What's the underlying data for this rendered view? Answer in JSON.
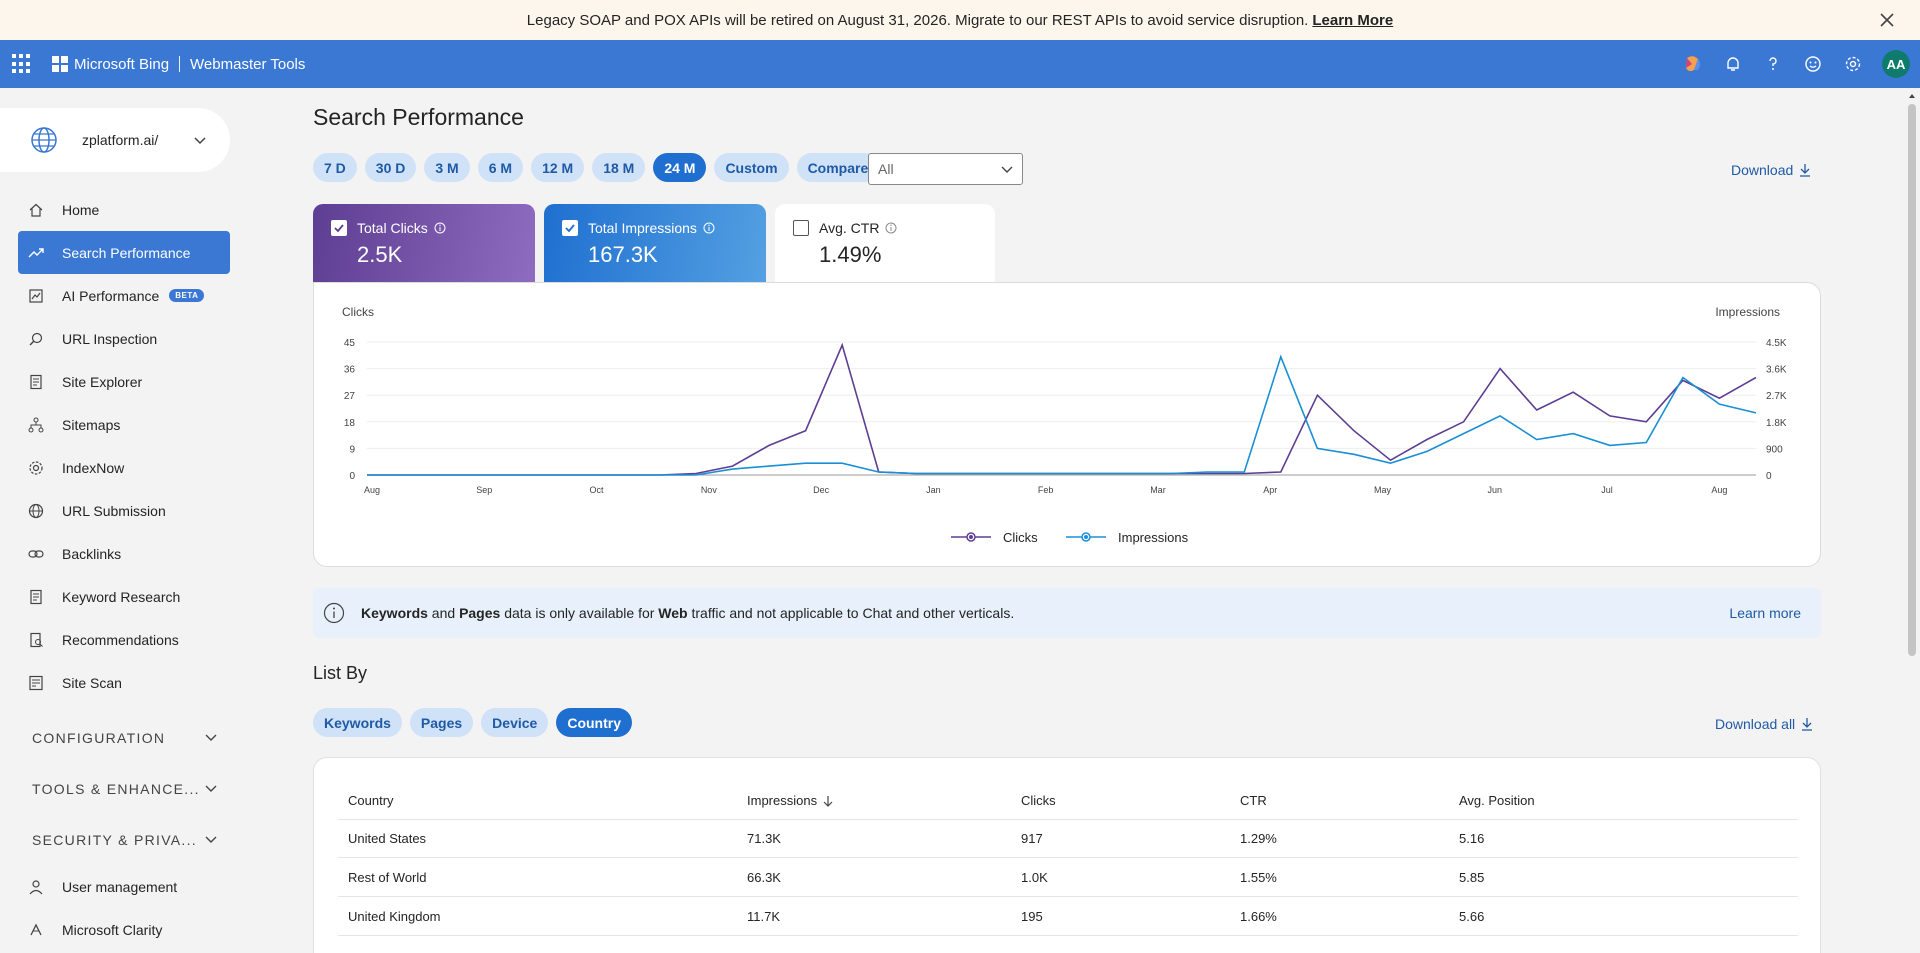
{
  "banner": {
    "message": "Legacy SOAP and POX APIs will be retired on August 31, 2026. Migrate to our REST APIs to avoid service disruption.",
    "link": "Learn More"
  },
  "topbar": {
    "brand": "Microsoft Bing",
    "product": "Webmaster Tools",
    "avatar": "AA"
  },
  "site": {
    "name": "zplatform.ai/"
  },
  "nav": {
    "items": [
      {
        "label": "Home",
        "icon": "home-icon"
      },
      {
        "label": "Search Performance",
        "icon": "trending-icon"
      },
      {
        "label": "AI Performance",
        "icon": "ai-chart-icon",
        "badge": "BETA"
      },
      {
        "label": "URL Inspection",
        "icon": "search-icon"
      },
      {
        "label": "Site Explorer",
        "icon": "document-icon"
      },
      {
        "label": "Sitemaps",
        "icon": "sitemap-icon"
      },
      {
        "label": "IndexNow",
        "icon": "gear-icon"
      },
      {
        "label": "URL Submission",
        "icon": "globe-icon"
      },
      {
        "label": "Backlinks",
        "icon": "link-icon"
      },
      {
        "label": "Keyword Research",
        "icon": "document-icon"
      },
      {
        "label": "Recommendations",
        "icon": "document-search-icon"
      },
      {
        "label": "Site Scan",
        "icon": "scan-icon"
      }
    ],
    "sections": [
      "CONFIGURATION",
      "TOOLS & ENHANCE...",
      "SECURITY & PRIVA..."
    ],
    "bottom": [
      {
        "label": "User management",
        "icon": "user-icon"
      },
      {
        "label": "Microsoft Clarity",
        "icon": "clarity-icon"
      }
    ]
  },
  "page": {
    "title": "Search Performance",
    "ranges": [
      "7 D",
      "30 D",
      "3 M",
      "6 M",
      "12 M",
      "18 M",
      "24 M",
      "Custom",
      "Compare"
    ],
    "active_range": "24 M",
    "filter_value": "All",
    "download": "Download",
    "download_all": "Download all"
  },
  "metrics": {
    "clicks": {
      "label": "Total Clicks",
      "value": "2.5K",
      "checked": true
    },
    "impressions": {
      "label": "Total Impressions",
      "value": "167.3K",
      "checked": true
    },
    "ctr": {
      "label": "Avg. CTR",
      "value": "1.49%",
      "checked": false
    }
  },
  "colors": {
    "clicks": "#5e3e92",
    "impressions": "#1a8fd6",
    "accent": "#3a78d4"
  },
  "chart_data": {
    "type": "line",
    "ylabel_left": "Clicks",
    "ylabel_right": "Impressions",
    "yticks_left": [
      "45",
      "36",
      "27",
      "18",
      "9",
      "0"
    ],
    "yticks_right": [
      "4.5K",
      "3.6K",
      "2.7K",
      "1.8K",
      "900",
      "0"
    ],
    "ylim_left": [
      0,
      45
    ],
    "ylim_right": [
      0,
      4500
    ],
    "months": [
      "Aug",
      "Sep",
      "Oct",
      "Nov",
      "Dec",
      "Jan",
      "Feb",
      "Mar",
      "Apr",
      "May",
      "Jun",
      "Jul",
      "Aug"
    ],
    "x": [
      0,
      10,
      20,
      30,
      40,
      50,
      60,
      70,
      80,
      90,
      100,
      110,
      120,
      130,
      140,
      150,
      160,
      170,
      180,
      190,
      200,
      210,
      220,
      230,
      240,
      250,
      260,
      270,
      280,
      290,
      300,
      310,
      320,
      330,
      340,
      350,
      360,
      370,
      380
    ],
    "x_unit": "days from first Aug tick",
    "legend": [
      "Clicks",
      "Impressions"
    ],
    "series": [
      {
        "name": "Clicks",
        "values": [
          0,
          0,
          0,
          0,
          0,
          0,
          0,
          0,
          0,
          0.5,
          3,
          10,
          15,
          44,
          1,
          0.5,
          0.5,
          0.5,
          0.5,
          0.5,
          0.5,
          0.5,
          0.5,
          0.5,
          0.5,
          1,
          27,
          15,
          5,
          12,
          18,
          36,
          22,
          28,
          20,
          18,
          32,
          26,
          33
        ]
      },
      {
        "name": "Impressions",
        "values": [
          0,
          0,
          0,
          0,
          0,
          0,
          0,
          0,
          0,
          0,
          200,
          300,
          400,
          400,
          100,
          50,
          50,
          50,
          50,
          50,
          50,
          50,
          50,
          100,
          100,
          4000,
          900,
          700,
          400,
          800,
          1400,
          2000,
          1200,
          1400,
          1000,
          1100,
          3300,
          2400,
          2100
        ]
      }
    ]
  },
  "notice": {
    "pre": "Keywords",
    "and": " and ",
    "pages": "Pages",
    "mid": " data is only available for ",
    "web": "Web",
    "post": " traffic and not applicable to Chat and other verticals.",
    "link": "Learn more"
  },
  "listby": {
    "title": "List By",
    "tabs": [
      "Keywords",
      "Pages",
      "Device",
      "Country"
    ],
    "active": "Country"
  },
  "table": {
    "headers": [
      "Country",
      "Impressions",
      "Clicks",
      "CTR",
      "Avg. Position"
    ],
    "rows": [
      [
        "United States",
        "71.3K",
        "917",
        "1.29%",
        "5.16"
      ],
      [
        "Rest of World",
        "66.3K",
        "1.0K",
        "1.55%",
        "5.85"
      ],
      [
        "United Kingdom",
        "11.7K",
        "195",
        "1.66%",
        "5.66"
      ]
    ]
  }
}
